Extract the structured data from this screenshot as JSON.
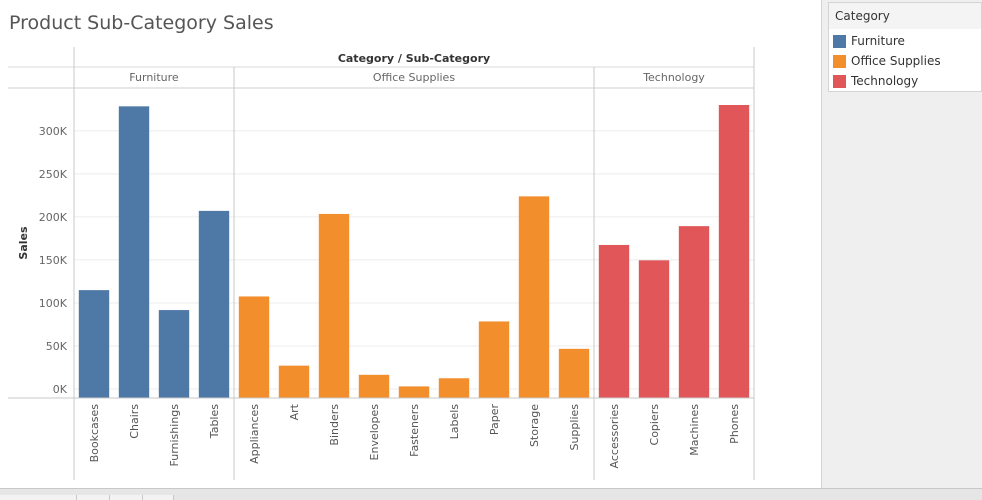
{
  "title": "Product Sub-Category Sales",
  "colors": {
    "Furniture": "#4e79a7",
    "Office Supplies": "#f28e2b",
    "Technology": "#e15759"
  },
  "legend": {
    "title": "Category",
    "items": [
      {
        "label": "Furniture",
        "color": "#4e79a7"
      },
      {
        "label": "Office Supplies",
        "color": "#f28e2b"
      },
      {
        "label": "Technology",
        "color": "#e15759"
      }
    ]
  },
  "chart_data": {
    "type": "bar",
    "title": "Product Sub-Category Sales",
    "column_header": "Category / Sub-Category",
    "ylabel": "Sales",
    "ylim": [
      -8000,
      345000
    ],
    "yticks": [
      0,
      50000,
      100000,
      150000,
      200000,
      250000,
      300000
    ],
    "ytick_labels": [
      "0K",
      "50K",
      "100K",
      "150K",
      "200K",
      "250K",
      "300K"
    ],
    "grid": true,
    "groups": [
      {
        "name": "Furniture",
        "categories": [
          "Bookcases",
          "Chairs",
          "Furnishings",
          "Tables"
        ],
        "values": [
          114880,
          328449,
          91705,
          206966
        ]
      },
      {
        "name": "Office Supplies",
        "categories": [
          "Appliances",
          "Art",
          "Binders",
          "Envelopes",
          "Fasteners",
          "Labels",
          "Paper",
          "Storage",
          "Supplies"
        ],
        "values": [
          107532,
          27119,
          203413,
          16476,
          3024,
          12486,
          78479,
          223844,
          46674
        ]
      },
      {
        "name": "Technology",
        "categories": [
          "Accessories",
          "Copiers",
          "Machines",
          "Phones"
        ],
        "values": [
          167380,
          149528,
          189239,
          330007
        ]
      }
    ]
  }
}
